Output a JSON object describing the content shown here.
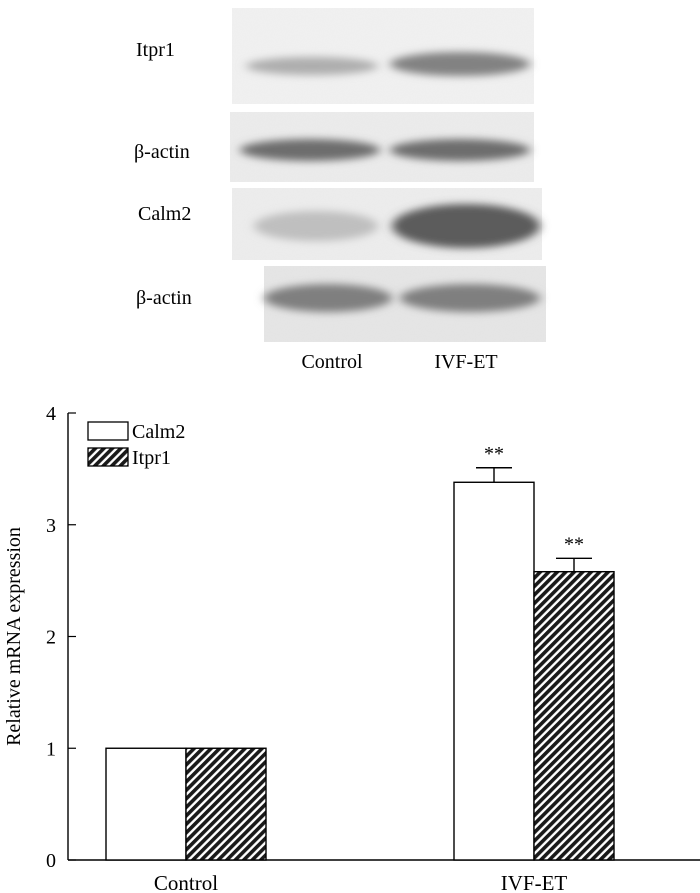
{
  "blot": {
    "rows": [
      {
        "label": "Itpr1",
        "intensity": [
          0.35,
          0.6
        ]
      },
      {
        "label": "β-actin",
        "intensity": [
          0.72,
          0.72
        ]
      },
      {
        "label": "Calm2",
        "intensity": [
          0.25,
          0.82
        ]
      },
      {
        "label": "β-actin",
        "intensity": [
          0.62,
          0.62
        ]
      }
    ],
    "lanes": [
      "Control",
      "IVF-ET"
    ]
  },
  "chart_data": {
    "type": "bar",
    "categories": [
      "Control",
      "IVF-ET"
    ],
    "series": [
      {
        "name": "Calm2",
        "values": [
          1.0,
          3.38
        ],
        "errors": [
          0.0,
          0.13
        ],
        "pattern": "open"
      },
      {
        "name": "Itpr1",
        "values": [
          1.0,
          2.58
        ],
        "errors": [
          0.0,
          0.12
        ],
        "pattern": "hatched"
      }
    ],
    "annotations": [
      {
        "category": "IVF-ET",
        "series": "Calm2",
        "text": "**"
      },
      {
        "category": "IVF-ET",
        "series": "Itpr1",
        "text": "**"
      }
    ],
    "ylabel": "Relative mRNA expression",
    "xlabel": "",
    "ylim": [
      0,
      4
    ],
    "yticks": [
      0,
      1,
      2,
      3,
      4
    ],
    "legend": "top-left",
    "grid": false
  }
}
